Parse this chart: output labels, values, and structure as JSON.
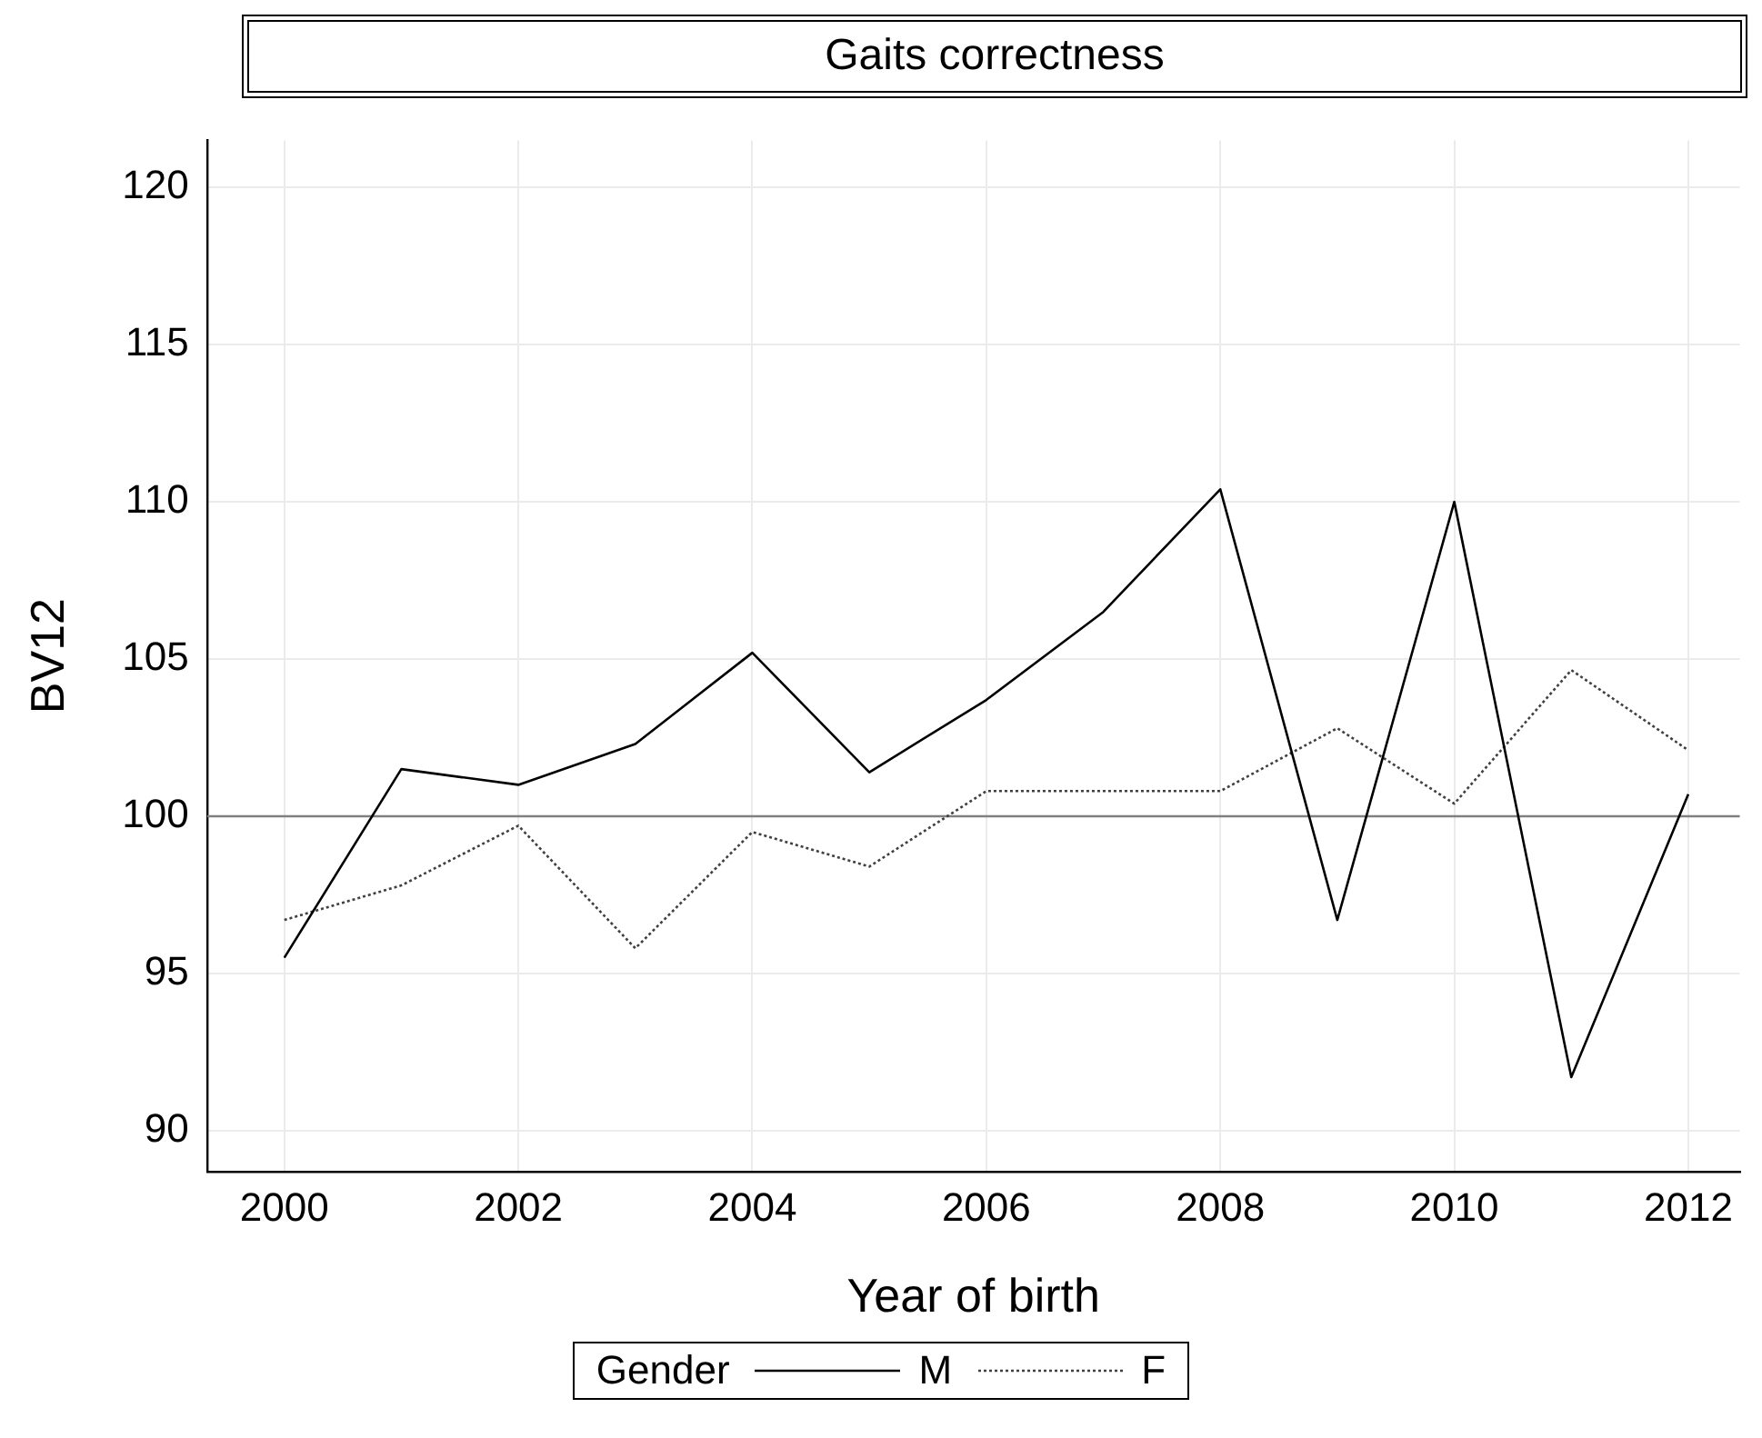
{
  "chart_data": {
    "type": "line",
    "title": "Gaits correctness",
    "xlabel": "Year of birth",
    "ylabel": "BV12",
    "legend_title": "Gender",
    "x": [
      2000,
      2001,
      2002,
      2003,
      2004,
      2005,
      2006,
      2007,
      2008,
      2009,
      2010,
      2011,
      2012
    ],
    "series": [
      {
        "name": "M",
        "color": "#000000",
        "line_style": "solid",
        "values": [
          95.5,
          101.5,
          101.0,
          102.3,
          105.2,
          101.4,
          103.7,
          106.5,
          110.4,
          96.7,
          110.0,
          91.7,
          100.7
        ]
      },
      {
        "name": "F",
        "color": "#404040",
        "line_style": "dotted",
        "values": [
          96.7,
          97.8,
          99.7,
          95.8,
          99.5,
          98.4,
          100.8,
          100.8,
          100.8,
          102.8,
          100.4,
          104.65,
          102.1
        ]
      }
    ],
    "xlim": [
      1999.34,
      2012.44
    ],
    "xticks": [
      2000,
      2002,
      2004,
      2006,
      2008,
      2010,
      2012
    ],
    "ylim": [
      88.7,
      121.5
    ],
    "yticks": [
      90,
      95,
      100,
      105,
      110,
      115,
      120
    ],
    "ref_lines": [
      {
        "axis": "y",
        "value": 100,
        "color": "#808080"
      }
    ],
    "grid": true,
    "legend": "bottom",
    "marker": "none"
  }
}
